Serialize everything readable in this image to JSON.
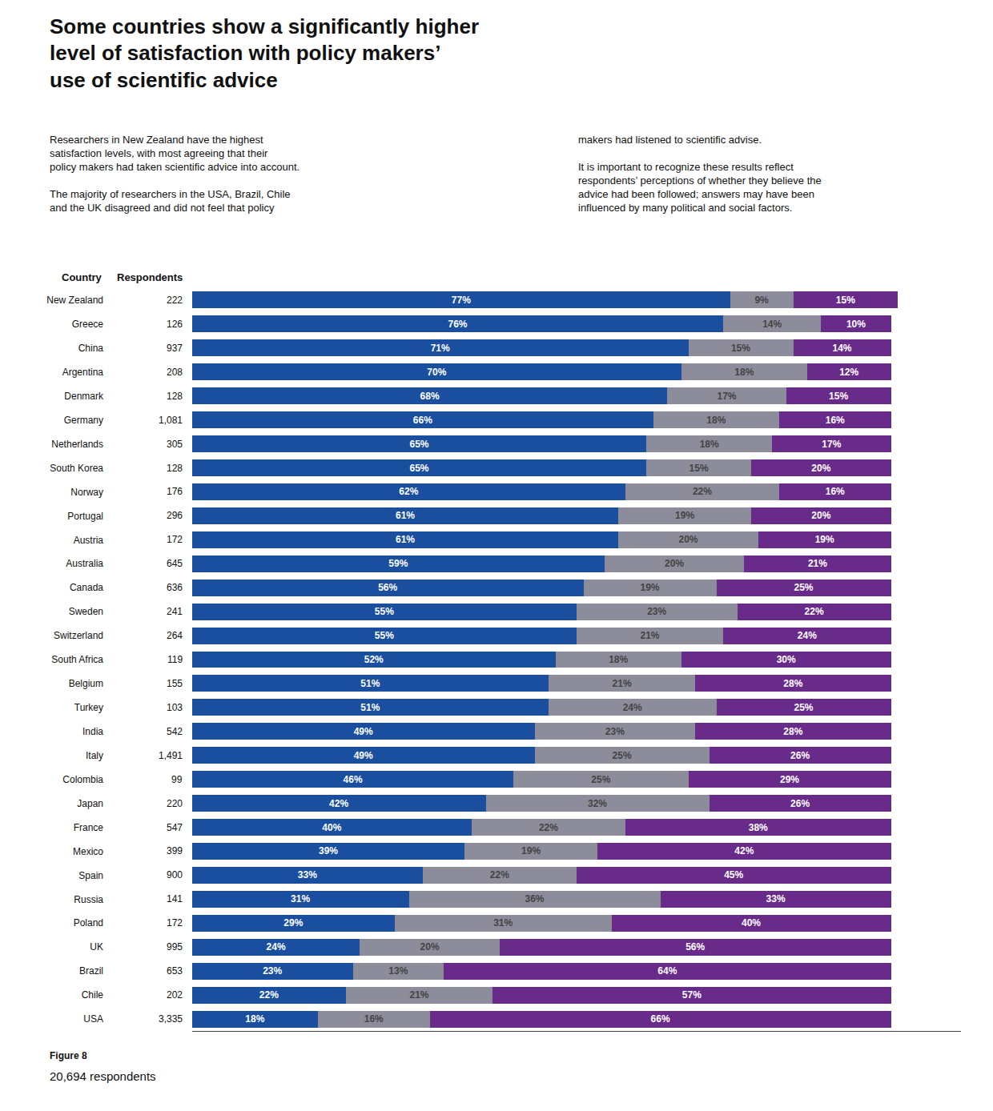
{
  "chart_data": {
    "type": "bar",
    "orientation": "horizontal",
    "stacked": true,
    "data_labels": true,
    "tick_labels": "y",
    "grid": false,
    "title": "Some countries show a significantly higher\nlevel of satisfaction with policy makers’\nuse of scientific advice",
    "subtitle": [
      "Researchers in New Zealand have the highest\nsatisfaction levels, with most agreeing that their\npolicy makers had taken scientific advice into account.\n\nThe majority of researchers in the USA, Brazil, Chile\nand the UK disagreed and did not feel that policy",
      "makers had listened to scientific advise.\n\nIt is important to recognize these results reflect\nrespondents’ perceptions of whether they believe the\nadvice had been followed; answers may have been\ninfluenced by many political and social factors."
    ],
    "column_headers": [
      "Country",
      "Respondents"
    ],
    "figure_label": "Figure 8",
    "respondents_label": "20,694 respondents",
    "categories": [
      "New Zealand",
      "Greece",
      "China",
      "Argentina",
      "Denmark",
      "Germany",
      "Netherlands",
      "South Korea",
      "Norway",
      "Portugal",
      "Austria",
      "Australia",
      "Canada",
      "Sweden",
      "Switzerland",
      "South Africa",
      "Belgium",
      "Turkey",
      "India",
      "Italy",
      "Colombia",
      "Japan",
      "France",
      "Mexico",
      "Spain",
      "Russia",
      "Poland",
      "UK",
      "Brazil",
      "Chile",
      "USA"
    ],
    "respondents": [
      222,
      126,
      937,
      208,
      128,
      {
        "value": 1081,
        "label": "1,081"
      },
      305,
      128,
      176,
      296,
      172,
      645,
      636,
      241,
      264,
      119,
      155,
      103,
      542,
      {
        "value": 1491,
        "label": "1,491"
      },
      99,
      220,
      547,
      399,
      900,
      141,
      172,
      995,
      653,
      202,
      {
        "value": 3335,
        "label": "3,335"
      }
    ],
    "xlim": [
      0,
      110
    ],
    "series": [
      {
        "color": "#1a4f9f",
        "values": [
          77,
          76,
          71,
          70,
          68,
          66,
          65,
          65,
          62,
          61,
          61,
          59,
          56,
          55,
          55,
          52,
          51,
          51,
          49,
          49,
          46,
          42,
          40,
          39,
          33,
          31,
          29,
          24,
          23,
          22,
          18
        ],
        "value_labels": [
          "77%",
          "76%",
          "71%",
          "70%",
          "68%",
          "66%",
          "65%",
          "65%",
          "62%",
          "61%",
          "61%",
          "59%",
          "56%",
          "55%",
          "55%",
          "52%",
          "51%",
          "51%",
          "49%",
          "49%",
          "46%",
          "42%",
          "40%",
          "39%",
          "33%",
          "31%",
          "29%",
          "24%",
          "23%",
          "22%",
          "18%"
        ]
      },
      {
        "color": "#8c8c9a",
        "values": [
          9,
          14,
          15,
          18,
          17,
          18,
          18,
          15,
          22,
          19,
          20,
          20,
          19,
          23,
          21,
          18,
          21,
          24,
          23,
          25,
          25,
          32,
          22,
          19,
          22,
          36,
          31,
          20,
          13,
          21,
          16
        ],
        "value_labels": [
          "9%",
          "14%",
          "15%",
          "18%",
          "17%",
          "18%",
          "18%",
          "15%",
          "22%",
          "19%",
          "20%",
          "20%",
          "19%",
          "23%",
          "21%",
          "18%",
          "21%",
          "24%",
          "23%",
          "25%",
          "25%",
          "32%",
          "22%",
          "19%",
          "22%",
          "36%",
          "31%",
          "20%",
          "13%",
          "21%",
          "16%"
        ]
      },
      {
        "color": "#692b8a",
        "values": [
          15,
          10,
          14,
          12,
          15,
          16,
          17,
          20,
          16,
          20,
          19,
          21,
          25,
          22,
          24,
          30,
          28,
          25,
          28,
          26,
          29,
          26,
          38,
          42,
          45,
          33,
          40,
          56,
          64,
          57,
          66
        ],
        "value_labels": [
          "15%",
          "10%",
          "14%",
          "12%",
          "15%",
          "16%",
          "17%",
          "20%",
          "16%",
          "20%",
          "19%",
          "21%",
          "25%",
          "22%",
          "24%",
          "30%",
          "28%",
          "25%",
          "28%",
          "26%",
          "29%",
          "26%",
          "38%",
          "42%",
          "45%",
          "33%",
          "40%",
          "56%",
          "64%",
          "57%",
          "66%"
        ]
      }
    ]
  }
}
